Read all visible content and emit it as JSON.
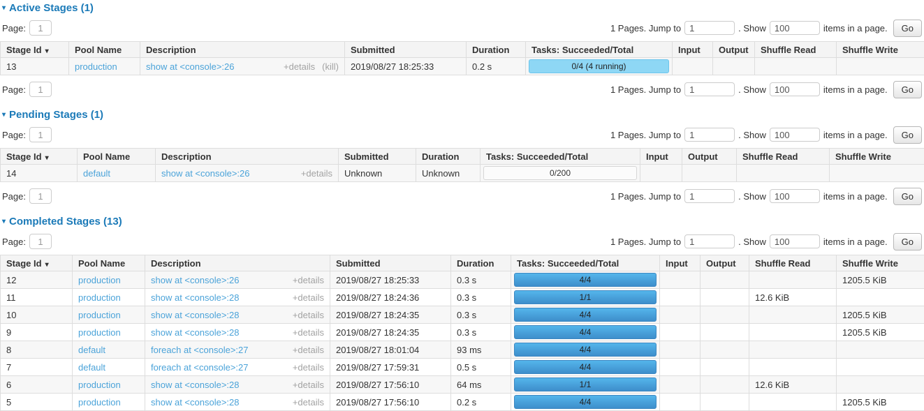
{
  "icons": {
    "collapse_arrow": "▾",
    "sort_arrow": "▾"
  },
  "colors": {
    "heading_blue": "#1b7ab8",
    "link_blue": "#4ba3d9",
    "bar_running": "#8ed7f5",
    "bar_done_top": "#54b5eb",
    "bar_done_bottom": "#3e8ecb"
  },
  "pagination": {
    "page_label": "Page:",
    "page_value": "1",
    "pages_text": "1 Pages. Jump to",
    "jump_value": "1",
    "show_text": ". Show",
    "show_value": "100",
    "items_text": "items in a page.",
    "go_label": "Go"
  },
  "columns": [
    "Stage Id",
    "Pool Name",
    "Description",
    "Submitted",
    "Duration",
    "Tasks: Succeeded/Total",
    "Input",
    "Output",
    "Shuffle Read",
    "Shuffle Write"
  ],
  "sections": [
    {
      "key": "active",
      "title": "Active Stages (1)",
      "rows": [
        {
          "id": "13",
          "pool": "production",
          "description": "show at <console>:26",
          "details": "+details",
          "kill": "(kill)",
          "submitted": "2019/08/27 18:25:33",
          "duration": "0.2 s",
          "tasks": "0/4 (4 running)",
          "bar_style": "running",
          "input": "",
          "output": "",
          "shuffle_read": "",
          "shuffle_write": ""
        }
      ]
    },
    {
      "key": "pending",
      "title": "Pending Stages (1)",
      "rows": [
        {
          "id": "14",
          "pool": "default",
          "description": "show at <console>:26",
          "details": "+details",
          "submitted": "Unknown",
          "duration": "Unknown",
          "tasks": "0/200",
          "bar_style": "empty",
          "input": "",
          "output": "",
          "shuffle_read": "",
          "shuffle_write": ""
        }
      ]
    },
    {
      "key": "completed",
      "title": "Completed Stages (13)",
      "rows": [
        {
          "id": "12",
          "pool": "production",
          "description": "show at <console>:26",
          "details": "+details",
          "submitted": "2019/08/27 18:25:33",
          "duration": "0.3 s",
          "tasks": "4/4",
          "bar_style": "done",
          "input": "",
          "output": "",
          "shuffle_read": "",
          "shuffle_write": "1205.5 KiB"
        },
        {
          "id": "11",
          "pool": "production",
          "description": "show at <console>:28",
          "details": "+details",
          "submitted": "2019/08/27 18:24:36",
          "duration": "0.3 s",
          "tasks": "1/1",
          "bar_style": "done",
          "input": "",
          "output": "",
          "shuffle_read": "12.6 KiB",
          "shuffle_write": ""
        },
        {
          "id": "10",
          "pool": "production",
          "description": "show at <console>:28",
          "details": "+details",
          "submitted": "2019/08/27 18:24:35",
          "duration": "0.3 s",
          "tasks": "4/4",
          "bar_style": "done",
          "input": "",
          "output": "",
          "shuffle_read": "",
          "shuffle_write": "1205.5 KiB"
        },
        {
          "id": "9",
          "pool": "production",
          "description": "show at <console>:28",
          "details": "+details",
          "submitted": "2019/08/27 18:24:35",
          "duration": "0.3 s",
          "tasks": "4/4",
          "bar_style": "done",
          "input": "",
          "output": "",
          "shuffle_read": "",
          "shuffle_write": "1205.5 KiB"
        },
        {
          "id": "8",
          "pool": "default",
          "description": "foreach at <console>:27",
          "details": "+details",
          "submitted": "2019/08/27 18:01:04",
          "duration": "93 ms",
          "tasks": "4/4",
          "bar_style": "done",
          "input": "",
          "output": "",
          "shuffle_read": "",
          "shuffle_write": ""
        },
        {
          "id": "7",
          "pool": "default",
          "description": "foreach at <console>:27",
          "details": "+details",
          "submitted": "2019/08/27 17:59:31",
          "duration": "0.5 s",
          "tasks": "4/4",
          "bar_style": "done",
          "input": "",
          "output": "",
          "shuffle_read": "",
          "shuffle_write": ""
        },
        {
          "id": "6",
          "pool": "production",
          "description": "show at <console>:28",
          "details": "+details",
          "submitted": "2019/08/27 17:56:10",
          "duration": "64 ms",
          "tasks": "1/1",
          "bar_style": "done",
          "input": "",
          "output": "",
          "shuffle_read": "12.6 KiB",
          "shuffle_write": ""
        },
        {
          "id": "5",
          "pool": "production",
          "description": "show at <console>:28",
          "details": "+details",
          "submitted": "2019/08/27 17:56:10",
          "duration": "0.2 s",
          "tasks": "4/4",
          "bar_style": "done",
          "input": "",
          "output": "",
          "shuffle_read": "",
          "shuffle_write": "1205.5 KiB"
        }
      ]
    }
  ]
}
